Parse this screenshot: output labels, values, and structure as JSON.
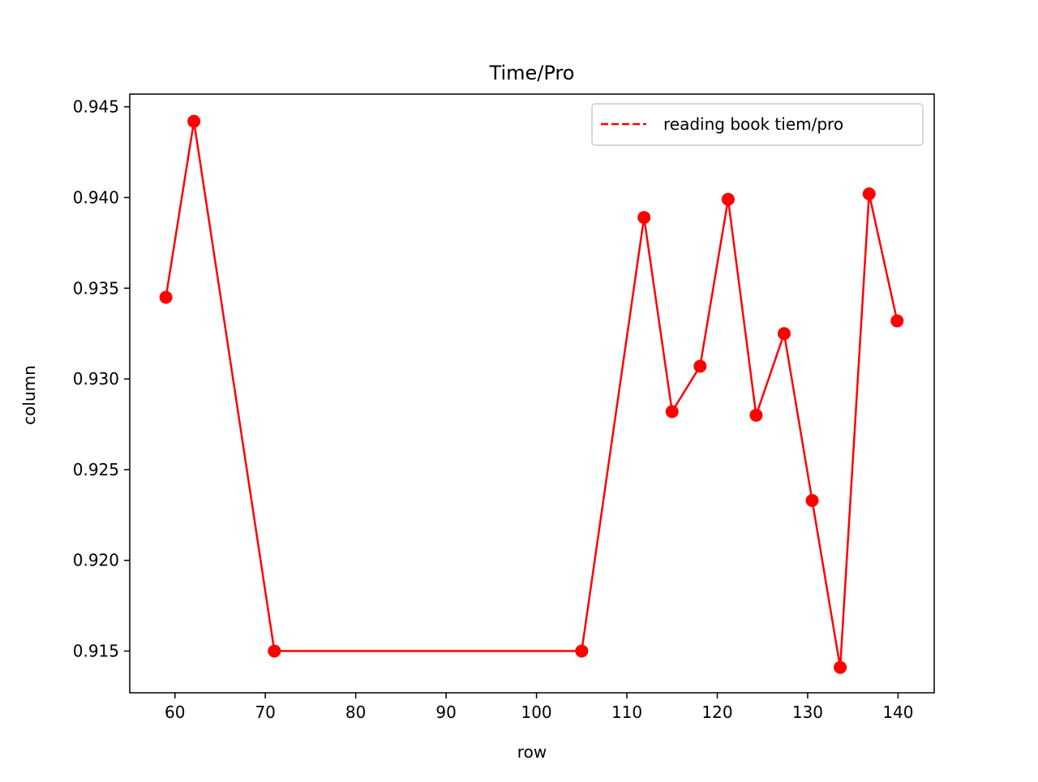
{
  "chart_data": {
    "type": "line",
    "title": "Time/Pro",
    "xlabel": "row",
    "ylabel": "column",
    "xlim": [
      55,
      144
    ],
    "ylim": [
      0.9127,
      0.9457
    ],
    "xticks": [
      60,
      70,
      80,
      90,
      100,
      110,
      120,
      130,
      140
    ],
    "xtick_labels": [
      "60",
      "70",
      "80",
      "90",
      "100",
      "110",
      "120",
      "130",
      "140"
    ],
    "yticks": [
      0.915,
      0.92,
      0.925,
      0.93,
      0.935,
      0.94,
      0.945
    ],
    "ytick_labels": [
      "0.915",
      "0.920",
      "0.925",
      "0.930",
      "0.935",
      "0.940",
      "0.945"
    ],
    "grid": false,
    "legend": {
      "position": "top-right",
      "entries": [
        {
          "label": "reading book tiem/pro",
          "style": "dashed",
          "color": "#ff0000"
        }
      ]
    },
    "series": [
      {
        "name": "reading book tiem/pro",
        "color": "#ff0000",
        "marker": "circle",
        "x": [
          59,
          62.1,
          71,
          105,
          111.9,
          115,
          118.1,
          121.2,
          124.3,
          127.4,
          130.5,
          133.6,
          136.8,
          139.9
        ],
        "y": [
          0.9345,
          0.9442,
          0.915,
          0.915,
          0.9389,
          0.9282,
          0.9307,
          0.9399,
          0.928,
          0.9325,
          0.9233,
          0.9141,
          0.9402,
          0.9332
        ]
      }
    ]
  }
}
